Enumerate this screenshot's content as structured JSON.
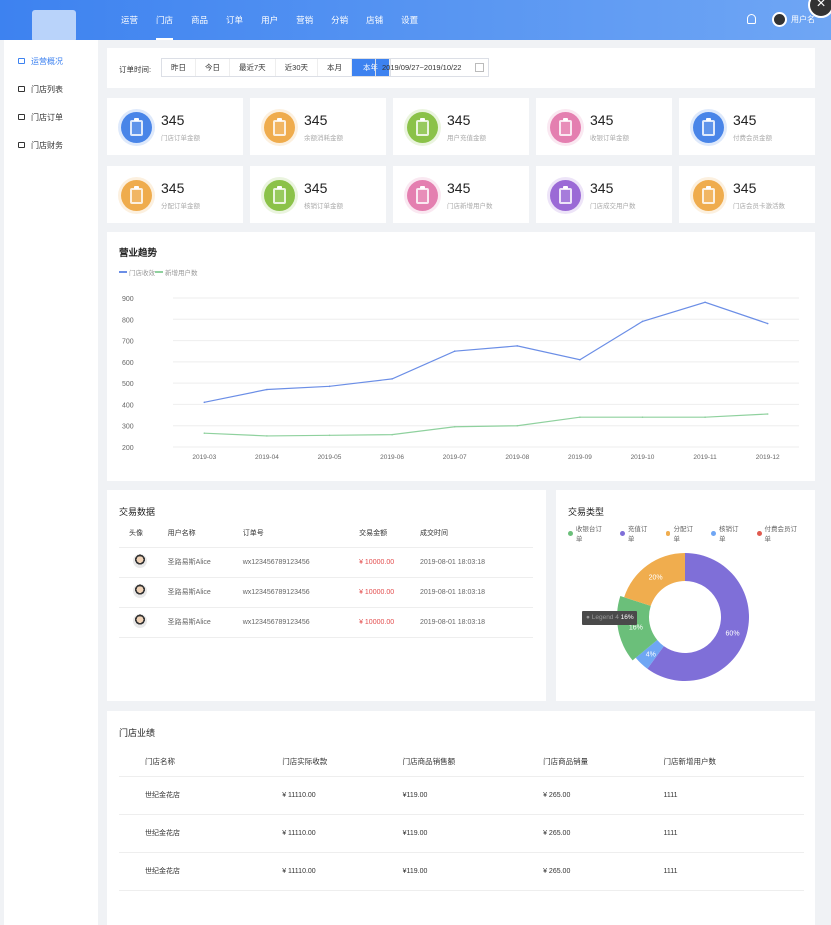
{
  "topbar": {
    "nav": [
      "运营",
      "门店",
      "商品",
      "订单",
      "用户",
      "营销",
      "分销",
      "店铺",
      "设置"
    ],
    "active_nav": 1,
    "username": "用户名"
  },
  "sidebar": {
    "items": [
      {
        "label": "运营概况",
        "active": true
      },
      {
        "label": "门店列表",
        "active": false
      },
      {
        "label": "门店订单",
        "active": false
      },
      {
        "label": "门店财务",
        "active": false
      }
    ]
  },
  "filter": {
    "label": "订单时间:",
    "buttons": [
      "昨日",
      "今日",
      "最近7天",
      "近30天",
      "本月",
      "本年"
    ],
    "active": 5,
    "date_range": "2019/09/27~2019/10/22"
  },
  "stats": [
    {
      "value": "345",
      "label": "门店订单金额",
      "color": "#4a86e8"
    },
    {
      "value": "345",
      "label": "余额消耗金额",
      "color": "#f0ad4e"
    },
    {
      "value": "345",
      "label": "用户充值金额",
      "color": "#8bc34a"
    },
    {
      "value": "345",
      "label": "收银订单金额",
      "color": "#e57fb0"
    },
    {
      "value": "345",
      "label": "付费会员金额",
      "color": "#4a86e8"
    },
    {
      "value": "345",
      "label": "分配订单金额",
      "color": "#f0ad4e"
    },
    {
      "value": "345",
      "label": "核销订单金额",
      "color": "#8bc34a"
    },
    {
      "value": "345",
      "label": "门店新增用户数",
      "color": "#e57fb0"
    },
    {
      "value": "345",
      "label": "门店成交用户数",
      "color": "#9b6bd6"
    },
    {
      "value": "345",
      "label": "门店会员卡激活数",
      "color": "#f0ad4e"
    }
  ],
  "chart_data": {
    "type": "line",
    "title": "营业趋势",
    "categories": [
      "2019-03",
      "2019-04",
      "2019-05",
      "2019-06",
      "2019-07",
      "2019-08",
      "2019-09",
      "2019-10",
      "2019-11",
      "2019-12"
    ],
    "ylim": [
      200,
      900
    ],
    "yticks": [
      900,
      800,
      700,
      600,
      500,
      400,
      300,
      200
    ],
    "series": [
      {
        "name": "门店收效",
        "color": "#6b8ee6",
        "values": [
          410,
          470,
          485,
          520,
          650,
          675,
          610,
          790,
          880,
          780
        ]
      },
      {
        "name": "新增用户数",
        "color": "#8fd19e",
        "values": [
          265,
          252,
          255,
          258,
          295,
          300,
          340,
          340,
          340,
          355
        ]
      }
    ],
    "grid": true,
    "legend": "top-left"
  },
  "trade": {
    "title": "交易数据",
    "headers": [
      "头像",
      "用户名称",
      "订单号",
      "交易金额",
      "成交时间"
    ],
    "rows": [
      [
        "",
        "圣路易斯Alice",
        "wx123456789123456",
        "¥ 10000.00",
        "2019-08-01 18:03:18"
      ],
      [
        "",
        "圣路易斯Alice",
        "wx123456789123456",
        "¥ 10000.00",
        "2019-08-01 18:03:18"
      ],
      [
        "",
        "圣路易斯Alice",
        "wx123456789123456",
        "¥ 10000.00",
        "2019-08-01 18:03:18"
      ]
    ]
  },
  "pie": {
    "title": "交易类型",
    "legend": [
      {
        "name": "收银台订单",
        "color": "#6bbf7a"
      },
      {
        "name": "充值订单",
        "color": "#7f6fd8"
      },
      {
        "name": "分配订单",
        "color": "#f0ad4e"
      },
      {
        "name": "核销订单",
        "color": "#6fa6f4"
      },
      {
        "name": "付费会员订单",
        "color": "#e05a4f"
      }
    ],
    "slices": [
      {
        "label": "60%",
        "value": 60,
        "color": "#7f6fd8"
      },
      {
        "label": "4%",
        "value": 4,
        "color": "#6fa6f4"
      },
      {
        "label": "16%",
        "value": 16,
        "color": "#6bbf7a"
      },
      {
        "label": "20%",
        "value": 20,
        "color": "#f0ad4e"
      }
    ],
    "tooltip": {
      "name": "Legend 4",
      "value": "16%"
    }
  },
  "store": {
    "title": "门店业绩",
    "headers": [
      "门店名称",
      "门店实际收款",
      "门店商品销售额",
      "门店商品销量",
      "门店新增用户数"
    ],
    "rows": [
      [
        "世纪金花店",
        "¥ 11110.00",
        "¥119.00",
        "¥ 265.00",
        "1111"
      ],
      [
        "世纪金花店",
        "¥ 11110.00",
        "¥119.00",
        "¥ 265.00",
        "1111"
      ],
      [
        "世纪金花店",
        "¥ 11110.00",
        "¥119.00",
        "¥ 265.00",
        "1111"
      ]
    ]
  }
}
